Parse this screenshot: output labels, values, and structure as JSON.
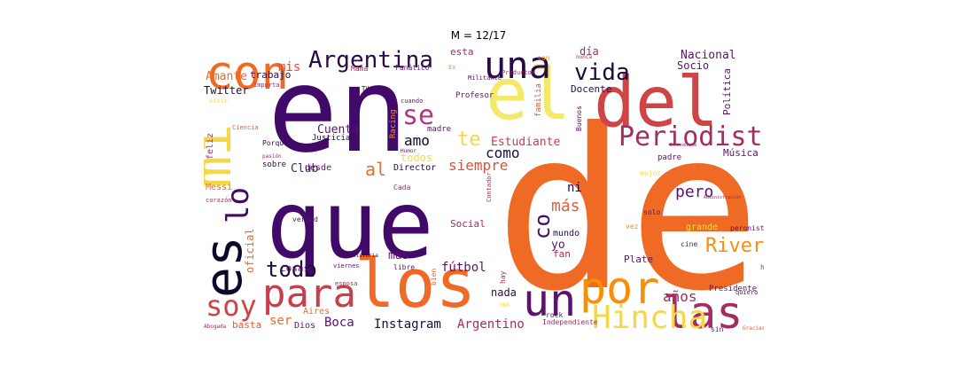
{
  "figure": {
    "title": "M = 12/17"
  },
  "chart_data": {
    "type": "wordcloud",
    "title": "M = 12/17",
    "colormap": "inferno",
    "words": [
      {
        "text": "de",
        "weight": 100,
        "color": "#ee6a25"
      },
      {
        "text": "en",
        "weight": 95,
        "color": "#420a68"
      },
      {
        "text": "que",
        "weight": 82,
        "color": "#420a68"
      },
      {
        "text": "del",
        "weight": 50,
        "color": "#cf4446"
      },
      {
        "text": "el",
        "weight": 58,
        "color": "#f3ea6b"
      },
      {
        "text": "los",
        "weight": 50,
        "color": "#ee6a25"
      },
      {
        "text": "mi",
        "weight": 42,
        "color": "#f6d746"
      },
      {
        "text": "es",
        "weight": 40,
        "color": "#0d0829"
      },
      {
        "text": "con",
        "weight": 36,
        "color": "#ee6a25"
      },
      {
        "text": "para",
        "weight": 32,
        "color": "#c73e4c"
      },
      {
        "text": "un",
        "weight": 32,
        "color": "#5c126e"
      },
      {
        "text": "por",
        "weight": 32,
        "color": "#f98e09"
      },
      {
        "text": "las",
        "weight": 30,
        "color": "#a32c61"
      },
      {
        "text": "una",
        "weight": 28,
        "color": "#2a0a48"
      },
      {
        "text": "Hincha",
        "weight": 26,
        "color": "#f6d746"
      },
      {
        "text": "soy",
        "weight": 24,
        "color": "#cf4446"
      },
      {
        "text": "Periodista",
        "weight": 22,
        "color": "#a32c61"
      },
      {
        "text": "lo",
        "weight": 22,
        "color": "#420a68"
      },
      {
        "text": "Argentina",
        "weight": 19,
        "color": "#2a0a48"
      },
      {
        "text": "se",
        "weight": 19,
        "color": "#b5367a"
      },
      {
        "text": "vida",
        "weight": 17,
        "color": "#1a0b40"
      },
      {
        "text": "todo",
        "weight": 16,
        "color": "#1a0b40"
      },
      {
        "text": "River",
        "weight": 15,
        "color": "#f98e09"
      },
      {
        "text": "co",
        "weight": 15,
        "color": "#420a68"
      },
      {
        "text": "pero",
        "weight": 13,
        "color": "#5c126e"
      },
      {
        "text": "más",
        "weight": 12,
        "color": "#e55c30"
      },
      {
        "text": "amo",
        "weight": 12,
        "color": "#0d0829"
      },
      {
        "text": "te",
        "weight": 12,
        "color": "#f6d746"
      },
      {
        "text": "al",
        "weight": 12,
        "color": "#ee6a25"
      },
      {
        "text": "siempre",
        "weight": 11,
        "color": "#dd513a"
      },
      {
        "text": "como",
        "weight": 11,
        "color": "#1a0b40"
      },
      {
        "text": "Boca",
        "weight": 10,
        "color": "#5c126e"
      },
      {
        "text": "años",
        "weight": 10,
        "color": "#a32c61"
      },
      {
        "text": "Argentino",
        "weight": 10,
        "color": "#a32c61"
      },
      {
        "text": "Instagram",
        "weight": 10,
        "color": "#1a0b40"
      },
      {
        "text": "Nacional",
        "weight": 9,
        "color": "#5c126e"
      },
      {
        "text": "Estudiante",
        "weight": 9,
        "color": "#c73e4c"
      },
      {
        "text": "Cuenta",
        "weight": 9,
        "color": "#5c126e"
      },
      {
        "text": "Amante",
        "weight": 9,
        "color": "#ee6a25"
      },
      {
        "text": "Twitter",
        "weight": 9,
        "color": "#1a0b40"
      },
      {
        "text": "mis",
        "weight": 9,
        "color": "#dd513a"
      },
      {
        "text": "ni",
        "weight": 9,
        "color": "#1a0b40"
      },
      {
        "text": "fútbol",
        "weight": 8,
        "color": "#5c126e"
      },
      {
        "text": "mas",
        "weight": 8,
        "color": "#5c126e"
      },
      {
        "text": "yo",
        "weight": 8,
        "color": "#5c126e"
      },
      {
        "text": "Club",
        "weight": 8,
        "color": "#5c126e"
      },
      {
        "text": "Socio",
        "weight": 8,
        "color": "#5c126e"
      },
      {
        "text": "oficial",
        "weight": 8,
        "color": "#ee6a25"
      },
      {
        "text": "ser",
        "weight": 8,
        "color": "#ee6a25"
      },
      {
        "text": "nada",
        "weight": 7,
        "color": "#2a0a48"
      },
      {
        "text": "Docente",
        "weight": 7,
        "color": "#2a0a48"
      },
      {
        "text": "Música",
        "weight": 7,
        "color": "#5c126e"
      },
      {
        "text": "todos",
        "weight": 7,
        "color": "#f6d746"
      },
      {
        "text": "Lic",
        "weight": 7,
        "color": "#f98e09"
      },
      {
        "text": "Director",
        "weight": 7,
        "color": "#1a0b40"
      },
      {
        "text": "si",
        "weight": 7,
        "color": "#a32c61"
      },
      {
        "text": "día",
        "weight": 7,
        "color": "#a32c61"
      },
      {
        "text": "mundo",
        "weight": 6,
        "color": "#2a0a48"
      },
      {
        "text": "cosas",
        "weight": 6,
        "color": "#5c126e"
      },
      {
        "text": "tu",
        "weight": 6,
        "color": "#1a0b40"
      },
      {
        "text": "esta",
        "weight": 6,
        "color": "#a32c61"
      },
      {
        "text": "Política",
        "weight": 6,
        "color": "#5c126e"
      },
      {
        "text": "basta",
        "weight": 6,
        "color": "#e55c30"
      },
      {
        "text": "Social",
        "weight": 6,
        "color": "#a32c61"
      },
      {
        "text": "Plate",
        "weight": 6,
        "color": "#5c126e"
      },
      {
        "text": "trabajo",
        "weight": 6,
        "color": "#2a0a48"
      },
      {
        "text": "feliz",
        "weight": 6,
        "color": "#a32c61"
      },
      {
        "text": "Messi",
        "weight": 6,
        "color": "#ee6a25"
      },
      {
        "text": "grande",
        "weight": 6,
        "color": "#f6d746"
      },
      {
        "text": "fan",
        "weight": 6,
        "color": "#a32c61"
      },
      {
        "text": "familia",
        "weight": 5,
        "color": "#e55c30"
      },
      {
        "text": "desde",
        "weight": 5,
        "color": "#5c126e"
      },
      {
        "text": "Aires",
        "weight": 5,
        "color": "#ee6a25"
      },
      {
        "text": "Dios",
        "weight": 5,
        "color": "#5c126e"
      },
      {
        "text": "Presidente",
        "weight": 5,
        "color": "#5c126e"
      },
      {
        "text": "padre",
        "weight": 5,
        "color": "#5c126e"
      },
      {
        "text": "Profesor",
        "weight": 5,
        "color": "#5c126e"
      },
      {
        "text": "madre",
        "weight": 5,
        "color": "#5c126e"
      },
      {
        "text": "Racing",
        "weight": 5,
        "color": "#f98e09"
      },
      {
        "text": "Justicia",
        "weight": 5,
        "color": "#1a0b40"
      },
      {
        "text": "sobre",
        "weight": 5,
        "color": "#2a0a48"
      },
      {
        "text": "Porque",
        "weight": 5,
        "color": "#2a0a48"
      },
      {
        "text": "Fanático",
        "weight": 5,
        "color": "#5c126e"
      },
      {
        "text": "Militante",
        "weight": 5,
        "color": "#5c126e"
      },
      {
        "text": "Mamá",
        "weight": 5,
        "color": "#a32c61"
      },
      {
        "text": "Buenos",
        "weight": 5,
        "color": "#5c126e"
      },
      {
        "text": "Independiente",
        "weight": 5,
        "color": "#a32c61"
      },
      {
        "text": "Productor",
        "weight": 5,
        "color": "#a32c61"
      },
      {
        "text": "Contador",
        "weight": 5,
        "color": "#a32c61"
      },
      {
        "text": "verdad",
        "weight": 4,
        "color": "#5c126e"
      },
      {
        "text": "cine",
        "weight": 4,
        "color": "#5c126e"
      },
      {
        "text": "dos",
        "weight": 4,
        "color": "#a32c61"
      },
      {
        "text": "hacer",
        "weight": 4,
        "color": "#a32c61"
      },
      {
        "text": "peronista",
        "weight": 4,
        "color": "#5c126e"
      },
      {
        "text": "solo",
        "weight": 4,
        "color": "#5c126e"
      },
      {
        "text": "vez",
        "weight": 4,
        "color": "#f98e09"
      },
      {
        "text": "rock",
        "weight": 4,
        "color": "#5c126e"
      },
      {
        "text": "libre",
        "weight": 4,
        "color": "#5c126e"
      },
      {
        "text": "bien",
        "weight": 4,
        "color": "#ee6a25"
      },
      {
        "text": "viernes",
        "weight": 4,
        "color": "#5c126e"
      },
      {
        "text": "esposa",
        "weight": 4,
        "color": "#a32c61"
      },
      {
        "text": "Cada",
        "weight": 4,
        "color": "#a32c61"
      },
      {
        "text": "cuando",
        "weight": 4,
        "color": "#5c126e"
      },
      {
        "text": "mejor",
        "weight": 4,
        "color": "#f6d746"
      },
      {
        "text": "sin",
        "weight": 4,
        "color": "#5c126e"
      },
      {
        "text": "hay",
        "weight": 4,
        "color": "#a32c61"
      },
      {
        "text": "son",
        "weight": 4,
        "color": "#f98e09"
      },
      {
        "text": "nunca",
        "weight": 3,
        "color": "#a32c61"
      },
      {
        "text": "Ex",
        "weight": 3,
        "color": "#f98e09"
      },
      {
        "text": "TV",
        "weight": 3,
        "color": "#1a0b40"
      },
      {
        "text": "importa",
        "weight": 3,
        "color": "#a32c61"
      },
      {
        "text": "vivir",
        "weight": 3,
        "color": "#f6d746"
      },
      {
        "text": "Ciencia",
        "weight": 3,
        "color": "#e55c30"
      },
      {
        "text": "pasión",
        "weight": 3,
        "color": "#a32c61"
      },
      {
        "text": "Humor",
        "weight": 3,
        "color": "#5c126e"
      },
      {
        "text": "corazón",
        "weight": 3,
        "color": "#a32c61"
      },
      {
        "text": "quiero",
        "weight": 3,
        "color": "#5c126e"
      },
      {
        "text": "historia",
        "weight": 3,
        "color": "#1a0b40"
      },
      {
        "text": "Radio",
        "weight": 3,
        "color": "#5c126e"
      },
      {
        "text": "UBA",
        "weight": 3,
        "color": "#f6d746"
      },
      {
        "text": "Abogada",
        "weight": 3,
        "color": "#a32c61"
      },
      {
        "text": "Economista",
        "weight": 3,
        "color": "#a32c61"
      },
      {
        "text": "Administracion",
        "weight": 3,
        "color": "#a32c61"
      },
      {
        "text": "Gracias",
        "weight": 3,
        "color": "#e55c30"
      }
    ]
  }
}
